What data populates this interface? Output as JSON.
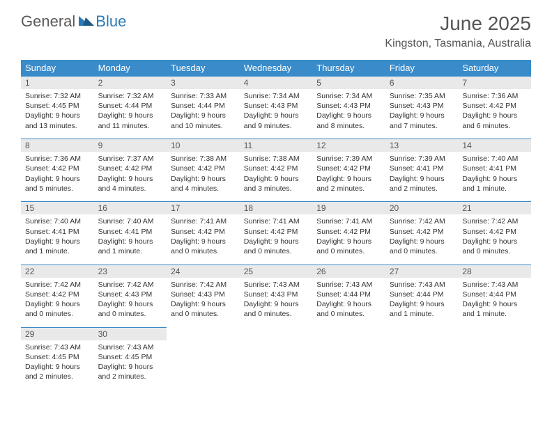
{
  "logo": {
    "general": "General",
    "blue": "Blue"
  },
  "title": "June 2025",
  "location": "Kingston, Tasmania, Australia",
  "colors": {
    "header_bg": "#3a8bc9",
    "header_text": "#ffffff",
    "daynum_bg": "#e9e9e9",
    "border": "#3a8bc9",
    "title_color": "#555555",
    "body_text": "#333333",
    "logo_general": "#595959",
    "logo_blue": "#2a7ab8"
  },
  "day_headers": [
    "Sunday",
    "Monday",
    "Tuesday",
    "Wednesday",
    "Thursday",
    "Friday",
    "Saturday"
  ],
  "weeks": [
    [
      {
        "num": "1",
        "sunrise": "Sunrise: 7:32 AM",
        "sunset": "Sunset: 4:45 PM",
        "daylight": "Daylight: 9 hours and 13 minutes."
      },
      {
        "num": "2",
        "sunrise": "Sunrise: 7:32 AM",
        "sunset": "Sunset: 4:44 PM",
        "daylight": "Daylight: 9 hours and 11 minutes."
      },
      {
        "num": "3",
        "sunrise": "Sunrise: 7:33 AM",
        "sunset": "Sunset: 4:44 PM",
        "daylight": "Daylight: 9 hours and 10 minutes."
      },
      {
        "num": "4",
        "sunrise": "Sunrise: 7:34 AM",
        "sunset": "Sunset: 4:43 PM",
        "daylight": "Daylight: 9 hours and 9 minutes."
      },
      {
        "num": "5",
        "sunrise": "Sunrise: 7:34 AM",
        "sunset": "Sunset: 4:43 PM",
        "daylight": "Daylight: 9 hours and 8 minutes."
      },
      {
        "num": "6",
        "sunrise": "Sunrise: 7:35 AM",
        "sunset": "Sunset: 4:43 PM",
        "daylight": "Daylight: 9 hours and 7 minutes."
      },
      {
        "num": "7",
        "sunrise": "Sunrise: 7:36 AM",
        "sunset": "Sunset: 4:42 PM",
        "daylight": "Daylight: 9 hours and 6 minutes."
      }
    ],
    [
      {
        "num": "8",
        "sunrise": "Sunrise: 7:36 AM",
        "sunset": "Sunset: 4:42 PM",
        "daylight": "Daylight: 9 hours and 5 minutes."
      },
      {
        "num": "9",
        "sunrise": "Sunrise: 7:37 AM",
        "sunset": "Sunset: 4:42 PM",
        "daylight": "Daylight: 9 hours and 4 minutes."
      },
      {
        "num": "10",
        "sunrise": "Sunrise: 7:38 AM",
        "sunset": "Sunset: 4:42 PM",
        "daylight": "Daylight: 9 hours and 4 minutes."
      },
      {
        "num": "11",
        "sunrise": "Sunrise: 7:38 AM",
        "sunset": "Sunset: 4:42 PM",
        "daylight": "Daylight: 9 hours and 3 minutes."
      },
      {
        "num": "12",
        "sunrise": "Sunrise: 7:39 AM",
        "sunset": "Sunset: 4:42 PM",
        "daylight": "Daylight: 9 hours and 2 minutes."
      },
      {
        "num": "13",
        "sunrise": "Sunrise: 7:39 AM",
        "sunset": "Sunset: 4:41 PM",
        "daylight": "Daylight: 9 hours and 2 minutes."
      },
      {
        "num": "14",
        "sunrise": "Sunrise: 7:40 AM",
        "sunset": "Sunset: 4:41 PM",
        "daylight": "Daylight: 9 hours and 1 minute."
      }
    ],
    [
      {
        "num": "15",
        "sunrise": "Sunrise: 7:40 AM",
        "sunset": "Sunset: 4:41 PM",
        "daylight": "Daylight: 9 hours and 1 minute."
      },
      {
        "num": "16",
        "sunrise": "Sunrise: 7:40 AM",
        "sunset": "Sunset: 4:41 PM",
        "daylight": "Daylight: 9 hours and 1 minute."
      },
      {
        "num": "17",
        "sunrise": "Sunrise: 7:41 AM",
        "sunset": "Sunset: 4:42 PM",
        "daylight": "Daylight: 9 hours and 0 minutes."
      },
      {
        "num": "18",
        "sunrise": "Sunrise: 7:41 AM",
        "sunset": "Sunset: 4:42 PM",
        "daylight": "Daylight: 9 hours and 0 minutes."
      },
      {
        "num": "19",
        "sunrise": "Sunrise: 7:41 AM",
        "sunset": "Sunset: 4:42 PM",
        "daylight": "Daylight: 9 hours and 0 minutes."
      },
      {
        "num": "20",
        "sunrise": "Sunrise: 7:42 AM",
        "sunset": "Sunset: 4:42 PM",
        "daylight": "Daylight: 9 hours and 0 minutes."
      },
      {
        "num": "21",
        "sunrise": "Sunrise: 7:42 AM",
        "sunset": "Sunset: 4:42 PM",
        "daylight": "Daylight: 9 hours and 0 minutes."
      }
    ],
    [
      {
        "num": "22",
        "sunrise": "Sunrise: 7:42 AM",
        "sunset": "Sunset: 4:42 PM",
        "daylight": "Daylight: 9 hours and 0 minutes."
      },
      {
        "num": "23",
        "sunrise": "Sunrise: 7:42 AM",
        "sunset": "Sunset: 4:43 PM",
        "daylight": "Daylight: 9 hours and 0 minutes."
      },
      {
        "num": "24",
        "sunrise": "Sunrise: 7:42 AM",
        "sunset": "Sunset: 4:43 PM",
        "daylight": "Daylight: 9 hours and 0 minutes."
      },
      {
        "num": "25",
        "sunrise": "Sunrise: 7:43 AM",
        "sunset": "Sunset: 4:43 PM",
        "daylight": "Daylight: 9 hours and 0 minutes."
      },
      {
        "num": "26",
        "sunrise": "Sunrise: 7:43 AM",
        "sunset": "Sunset: 4:44 PM",
        "daylight": "Daylight: 9 hours and 0 minutes."
      },
      {
        "num": "27",
        "sunrise": "Sunrise: 7:43 AM",
        "sunset": "Sunset: 4:44 PM",
        "daylight": "Daylight: 9 hours and 1 minute."
      },
      {
        "num": "28",
        "sunrise": "Sunrise: 7:43 AM",
        "sunset": "Sunset: 4:44 PM",
        "daylight": "Daylight: 9 hours and 1 minute."
      }
    ],
    [
      {
        "num": "29",
        "sunrise": "Sunrise: 7:43 AM",
        "sunset": "Sunset: 4:45 PM",
        "daylight": "Daylight: 9 hours and 2 minutes."
      },
      {
        "num": "30",
        "sunrise": "Sunrise: 7:43 AM",
        "sunset": "Sunset: 4:45 PM",
        "daylight": "Daylight: 9 hours and 2 minutes."
      },
      null,
      null,
      null,
      null,
      null
    ]
  ]
}
